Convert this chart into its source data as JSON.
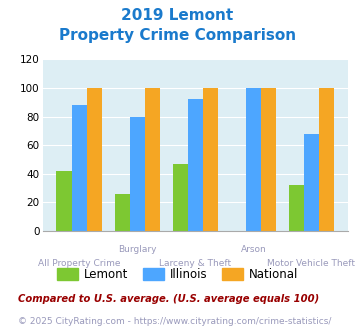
{
  "title_line1": "2019 Lemont",
  "title_line2": "Property Crime Comparison",
  "categories": [
    "All Property Crime",
    "Burglary",
    "Larceny & Theft",
    "Arson",
    "Motor Vehicle Theft"
  ],
  "lemont": [
    42,
    26,
    47,
    0,
    32
  ],
  "illinois": [
    88,
    80,
    92,
    100,
    68
  ],
  "national": [
    100,
    100,
    100,
    100,
    100
  ],
  "lemont_color": "#7dc832",
  "illinois_color": "#4da6ff",
  "national_color": "#f5a623",
  "ylim": [
    0,
    120
  ],
  "yticks": [
    0,
    20,
    40,
    60,
    80,
    100,
    120
  ],
  "legend_labels": [
    "Lemont",
    "Illinois",
    "National"
  ],
  "top_labels": {
    "1": "Burglary",
    "3": "Arson"
  },
  "bottom_labels": {
    "0": "All Property Crime",
    "2": "Larceny & Theft",
    "4": "Motor Vehicle Theft"
  },
  "footnote1": "Compared to U.S. average. (U.S. average equals 100)",
  "footnote2": "© 2025 CityRating.com - https://www.cityrating.com/crime-statistics/",
  "bg_color": "#ddeef4",
  "title_color": "#1a7acc",
  "label_color": "#9999bb",
  "footnote1_color": "#990000",
  "footnote2_color": "#9999bb",
  "url_color": "#4da6ff"
}
